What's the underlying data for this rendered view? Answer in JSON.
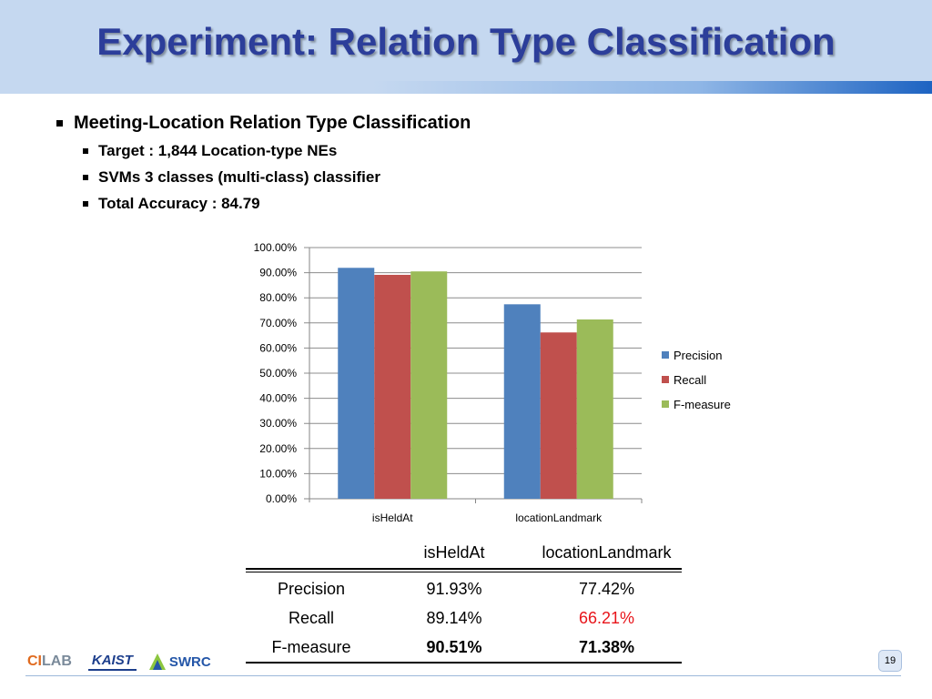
{
  "slide": {
    "title": "Experiment: Relation Type Classification",
    "page_number": "19"
  },
  "bullets": {
    "main": "Meeting-Location Relation Type Classification",
    "sub": [
      "Target : 1,844 Location-type NEs",
      "SVMs 3 classes (multi-class) classifier",
      "Total Accuracy : 84.79"
    ]
  },
  "chart_data": {
    "type": "bar",
    "categories": [
      "isHeldAt",
      "locationLandmark"
    ],
    "series": [
      {
        "name": "Precision",
        "values": [
          91.93,
          77.42
        ]
      },
      {
        "name": "Recall",
        "values": [
          89.14,
          66.21
        ]
      },
      {
        "name": "F-measure",
        "values": [
          90.51,
          71.38
        ]
      }
    ],
    "yticks": [
      "0.00%",
      "10.00%",
      "20.00%",
      "30.00%",
      "40.00%",
      "50.00%",
      "60.00%",
      "70.00%",
      "80.00%",
      "90.00%",
      "100.00%"
    ],
    "ylim": [
      0,
      100
    ],
    "grid": true,
    "legend": "right",
    "colors": [
      "#4f81bd",
      "#c0504d",
      "#9bbb59"
    ]
  },
  "table": {
    "headers": [
      "",
      "isHeldAt",
      "locationLandmark"
    ],
    "rows": [
      [
        "Precision",
        "91.93%",
        "77.42%"
      ],
      [
        "Recall",
        "89.14%",
        "66.21%"
      ],
      [
        "F-measure",
        "90.51%",
        "71.38%"
      ]
    ]
  },
  "logos": {
    "cilab_prefix": "CI",
    "cilab_suffix": "LAB",
    "kaist": "KAIST",
    "svrc": "SWRC"
  }
}
